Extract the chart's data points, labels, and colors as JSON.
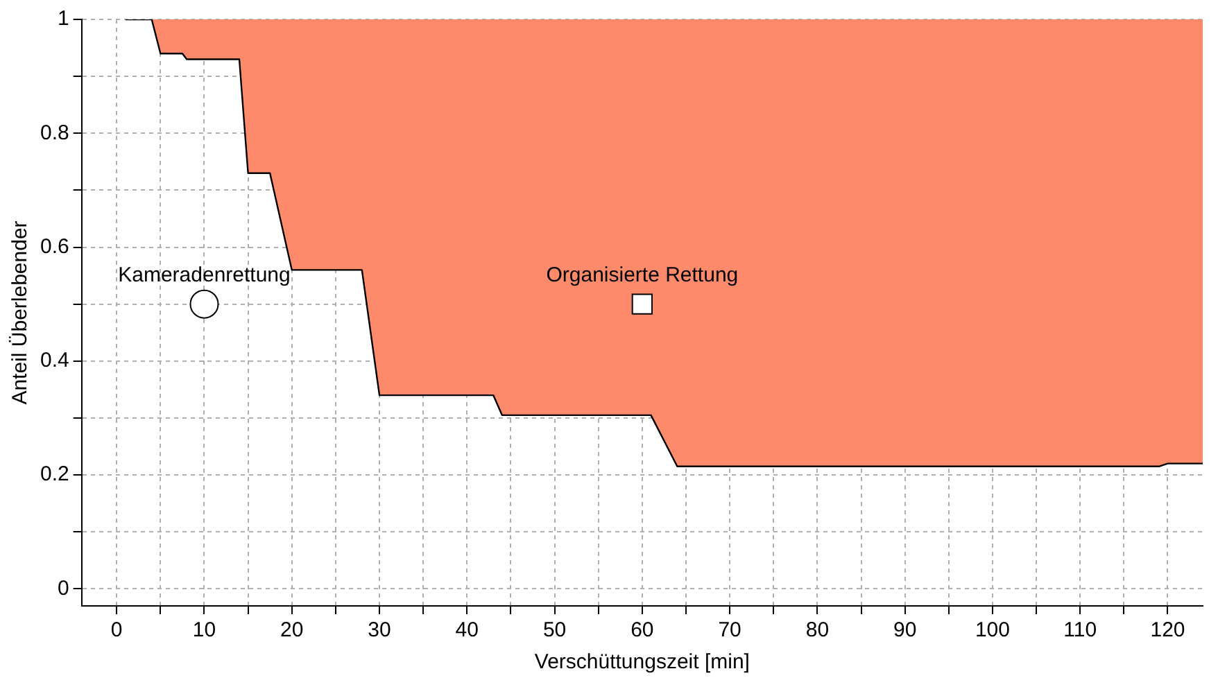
{
  "chart_data": {
    "type": "line",
    "xlabel": "Verschüttungszeit [min]",
    "ylabel": "Anteil Überlebender",
    "series": [
      {
        "color": "#000000",
        "x": [
          1,
          4,
          5,
          7.5,
          8,
          14,
          15,
          17.5,
          20,
          28,
          30,
          43,
          44,
          61,
          64,
          119,
          120,
          124
        ],
        "values": [
          1,
          1,
          0.94,
          0.94,
          0.93,
          0.93,
          0.73,
          0.73,
          0.56,
          0.56,
          0.34,
          0.34,
          0.305,
          0.305,
          0.215,
          0.215,
          0.22,
          0.22
        ],
        "lower": [
          1,
          1,
          0.94,
          0.94,
          0.93,
          0.93,
          0.73,
          0.73,
          0.56,
          0.56,
          0.34,
          0.34,
          0.305,
          0.305,
          0.215,
          0.215,
          0.22,
          0.22
        ],
        "upper": [
          1,
          1,
          1,
          1,
          1,
          1,
          1,
          1,
          1,
          1,
          1,
          1,
          1,
          1,
          1,
          1,
          1,
          1
        ]
      },
      {
        "type": "scatter",
        "name": "Kameradenrettung",
        "color": "#ffffff",
        "marker": "circle",
        "x": [
          10
        ],
        "values": [
          0.5
        ]
      },
      {
        "type": "scatter",
        "name": "Organisierte Rettung",
        "color": "#ffffff",
        "marker": "square",
        "x": [
          60
        ],
        "values": [
          0.5
        ]
      }
    ],
    "xlim": [
      -4,
      124
    ],
    "ylim": [
      -0.03,
      1
    ],
    "xticks": [
      0,
      {
        "value": 5,
        "label": null
      },
      10,
      {
        "value": 15,
        "label": null
      },
      20,
      {
        "value": 25,
        "label": null
      },
      30,
      {
        "value": 35,
        "label": null
      },
      40,
      {
        "value": 45,
        "label": null
      },
      50,
      {
        "value": 55,
        "label": null
      },
      60,
      {
        "value": 65,
        "label": null
      },
      70,
      {
        "value": 75,
        "label": null
      },
      80,
      {
        "value": 85,
        "label": null
      },
      90,
      {
        "value": 95,
        "label": null
      },
      100,
      {
        "value": 105,
        "label": null
      },
      110,
      {
        "value": 115,
        "label": null
      },
      120
    ],
    "yticks": [
      0,
      {
        "value": 0.1,
        "label": null
      },
      0.2,
      {
        "value": 0.3,
        "label": null
      },
      0.4,
      {
        "value": 0.5,
        "label": null
      },
      0.6,
      {
        "value": 0.7,
        "label": null
      },
      0.8,
      {
        "value": 0.9,
        "label": null
      },
      1
    ],
    "grid": true,
    "legend": false,
    "line_style": "solid"
  }
}
